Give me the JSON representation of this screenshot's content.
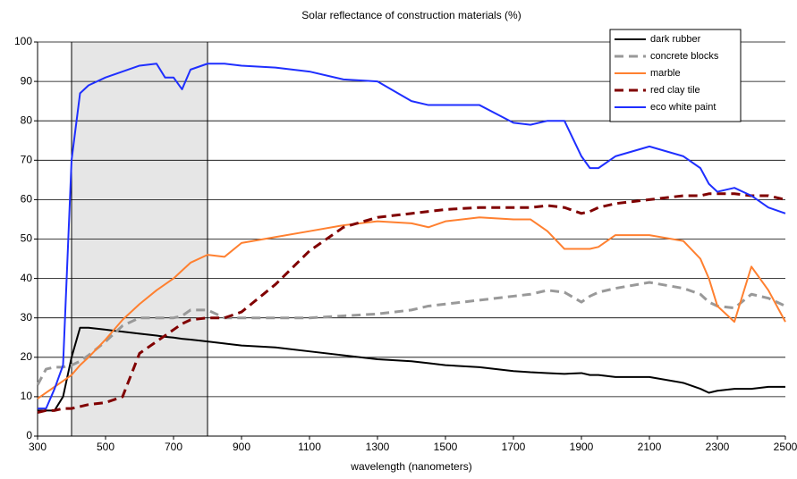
{
  "chart_data": {
    "type": "line",
    "title": "Solar reflectance of construction materials (%)",
    "x_label": "wavelength (nanometers)",
    "x": [
      300,
      325,
      350,
      375,
      400,
      425,
      450,
      500,
      550,
      600,
      650,
      675,
      700,
      725,
      750,
      800,
      850,
      900,
      1000,
      1100,
      1200,
      1300,
      1400,
      1450,
      1500,
      1600,
      1700,
      1750,
      1800,
      1850,
      1900,
      1925,
      1950,
      2000,
      2100,
      2200,
      2250,
      2275,
      2300,
      2350,
      2400,
      2450,
      2500
    ],
    "series": [
      {
        "name": "dark rubber",
        "color": "#000000",
        "dashed": false,
        "values": [
          6.5,
          6.5,
          6.5,
          10,
          20,
          27.5,
          27.5,
          27,
          26.5,
          26,
          25.5,
          25.2,
          25,
          24.7,
          24.5,
          24,
          23.5,
          23,
          22.5,
          21.5,
          20.5,
          19.5,
          19,
          18.5,
          18,
          17.5,
          16.5,
          16.2,
          16,
          15.8,
          16,
          15.5,
          15.5,
          15,
          15,
          13.5,
          12,
          11,
          11.5,
          12,
          12,
          12.5,
          12.5
        ]
      },
      {
        "name": "concrete blocks",
        "color": "#999999",
        "dashed": true,
        "values": [
          13,
          17,
          17.5,
          17.5,
          18,
          19,
          20.5,
          24,
          28,
          30,
          30,
          30,
          30,
          30.5,
          32,
          32,
          30,
          30,
          30,
          30,
          30.5,
          31,
          32,
          33,
          33.5,
          34.5,
          35.5,
          36,
          37,
          36.5,
          34,
          35.5,
          36.5,
          37.5,
          39,
          37.5,
          36,
          34,
          33,
          32.5,
          36,
          35,
          33
        ]
      },
      {
        "name": "marble",
        "color": "#ff8030",
        "dashed": false,
        "values": [
          9.5,
          11,
          12.5,
          14,
          15.5,
          18,
          20,
          24.5,
          29.5,
          33.5,
          37,
          38.5,
          40,
          42,
          44,
          46,
          45.5,
          49,
          50.5,
          52,
          53.5,
          54.5,
          54,
          53,
          54.5,
          55.5,
          55,
          55,
          52,
          47.5,
          47.5,
          47.5,
          48,
          51,
          51,
          49.5,
          45,
          40,
          33,
          29,
          43,
          37,
          29
        ]
      },
      {
        "name": "red clay tile",
        "color": "#800000",
        "dashed": true,
        "values": [
          6,
          6.5,
          6.5,
          7,
          7,
          7.5,
          8,
          8.5,
          10,
          21,
          24,
          25.5,
          27,
          28.5,
          29.5,
          30,
          30,
          31.5,
          38.5,
          47,
          53,
          55.5,
          56.5,
          57,
          57.5,
          58,
          58,
          58,
          58.5,
          58,
          56.5,
          57,
          58,
          59,
          60,
          61,
          61,
          61.5,
          61.5,
          61.5,
          61,
          61,
          60
        ]
      },
      {
        "name": "eco white paint",
        "color": "#1f2fff",
        "dashed": false,
        "values": [
          7,
          7,
          12,
          18,
          70,
          87,
          89,
          91,
          92.5,
          94,
          94.5,
          91,
          91,
          88,
          93,
          94.5,
          94.5,
          94,
          93.5,
          92.5,
          90.5,
          90,
          85,
          84,
          84,
          84,
          79.5,
          79,
          80,
          80,
          71,
          68,
          68,
          71,
          73.5,
          71,
          68,
          64,
          62,
          63,
          61,
          58,
          56.5
        ]
      }
    ],
    "highlight": {
      "xmin": 400,
      "xmax": 800
    },
    "xlim": [
      300,
      2500
    ],
    "xticks": [
      300,
      500,
      700,
      900,
      1100,
      1300,
      1500,
      1700,
      1900,
      2100,
      2300,
      2500
    ],
    "ylim": [
      0,
      100
    ],
    "yticks": [
      0,
      10,
      20,
      30,
      40,
      50,
      60,
      70,
      80,
      90,
      100
    ],
    "grid": true,
    "legend": "upper right"
  }
}
